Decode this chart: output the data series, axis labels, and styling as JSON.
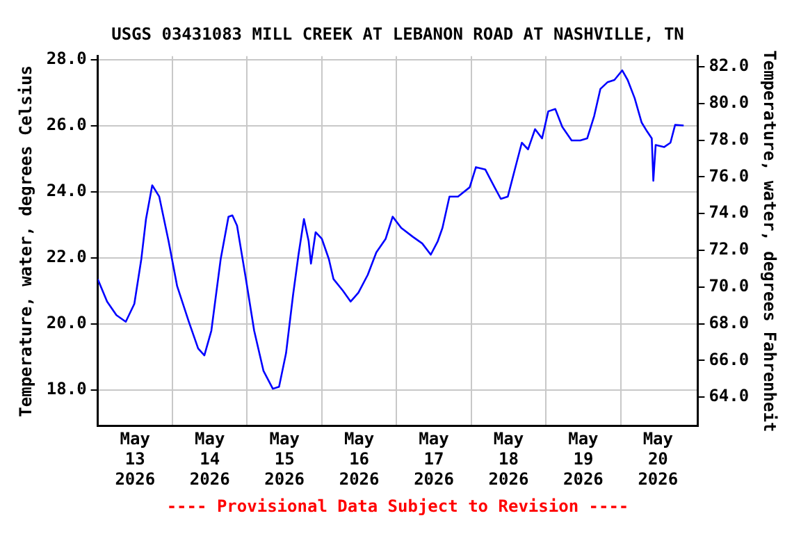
{
  "chart_data": {
    "type": "line",
    "title": "USGS 03431083 MILL CREEK AT LEBANON ROAD AT NASHVILLE, TN",
    "ylabel": "Temperature, water, degrees Celsius",
    "y2label": "Temperature, water, degrees Fahrenheit",
    "annotations": [
      "---- Provisional Data Subject to Revision ----"
    ],
    "x": [
      "2026-05-13T00:00",
      "2026-05-13T03:00",
      "2026-05-13T06:00",
      "2026-05-13T09:00",
      "2026-05-13T11:45",
      "2026-05-13T14:00",
      "2026-05-13T15:30",
      "2026-05-13T17:30",
      "2026-05-13T19:45",
      "2026-05-13T22:45",
      "2026-05-14T01:30",
      "2026-05-14T05:15",
      "2026-05-14T08:15",
      "2026-05-14T10:15",
      "2026-05-14T12:30",
      "2026-05-14T15:30",
      "2026-05-14T18:00",
      "2026-05-14T19:15",
      "2026-05-14T20:45",
      "2026-05-14T23:30",
      "2026-05-15T02:15",
      "2026-05-15T05:15",
      "2026-05-15T08:15",
      "2026-05-15T10:15",
      "2026-05-15T12:30",
      "2026-05-15T14:45",
      "2026-05-15T16:30",
      "2026-05-15T18:15",
      "2026-05-15T19:45",
      "2026-05-15T20:30",
      "2026-05-15T22:00",
      "2026-05-16T00:00",
      "2026-05-16T02:15",
      "2026-05-16T03:45",
      "2026-05-16T06:45",
      "2026-05-16T09:15",
      "2026-05-16T11:45",
      "2026-05-16T14:45",
      "2026-05-16T17:30",
      "2026-05-16T20:30",
      "2026-05-16T22:45",
      "2026-05-17T01:30",
      "2026-05-17T05:15",
      "2026-05-17T08:15",
      "2026-05-17T11:00",
      "2026-05-17T13:15",
      "2026-05-17T14:45",
      "2026-05-17T17:00",
      "2026-05-17T19:45",
      "2026-05-17T23:30",
      "2026-05-18T01:30",
      "2026-05-18T04:30",
      "2026-05-18T07:30",
      "2026-05-18T09:30",
      "2026-05-18T11:45",
      "2026-05-18T14:00",
      "2026-05-18T16:15",
      "2026-05-18T18:15",
      "2026-05-18T20:30",
      "2026-05-18T22:45",
      "2026-05-19T00:45",
      "2026-05-19T03:00",
      "2026-05-19T05:15",
      "2026-05-19T08:15",
      "2026-05-19T11:00",
      "2026-05-19T13:15",
      "2026-05-19T15:30",
      "2026-05-19T17:30",
      "2026-05-19T19:45",
      "2026-05-19T22:00",
      "2026-05-20T00:30",
      "2026-05-20T02:15",
      "2026-05-20T04:30",
      "2026-05-20T06:45",
      "2026-05-20T08:30",
      "2026-05-20T10:00",
      "2026-05-20T10:30",
      "2026-05-20T11:15",
      "2026-05-20T14:00",
      "2026-05-20T16:00",
      "2026-05-20T17:30",
      "2026-05-20T20:15"
    ],
    "series": [
      {
        "color": "#0000ff",
        "values": [
          21.35,
          20.67,
          20.26,
          20.06,
          20.6,
          21.96,
          23.17,
          24.19,
          23.85,
          22.5,
          21.14,
          20.06,
          19.25,
          19.04,
          19.79,
          21.96,
          23.24,
          23.28,
          22.97,
          21.41,
          19.79,
          18.57,
          18.03,
          18.09,
          19.11,
          20.87,
          22.09,
          23.17,
          22.5,
          21.82,
          22.77,
          22.57,
          21.96,
          21.35,
          21.0,
          20.67,
          20.94,
          21.48,
          22.16,
          22.57,
          23.24,
          22.9,
          22.63,
          22.43,
          22.09,
          22.5,
          22.9,
          23.85,
          23.85,
          24.13,
          24.74,
          24.67,
          24.13,
          23.78,
          23.85,
          24.67,
          25.48,
          25.28,
          25.89,
          25.61,
          26.43,
          26.5,
          25.96,
          25.55,
          25.55,
          25.61,
          26.29,
          27.11,
          27.31,
          27.38,
          27.67,
          27.38,
          26.83,
          26.09,
          25.82,
          25.61,
          24.33,
          25.41,
          25.35,
          25.48,
          26.02,
          26.0
        ]
      }
    ],
    "xlim": [
      "2026-05-13T00:00",
      "2026-05-21T00:45"
    ],
    "xticks": [
      {
        "value": "2026-05-13T12:00",
        "label": "May\n13\n2026"
      },
      {
        "value": "2026-05-14T00:00",
        "label": null
      },
      {
        "value": "2026-05-14T12:00",
        "label": "May\n14\n2026"
      },
      {
        "value": "2026-05-15T00:00",
        "label": null
      },
      {
        "value": "2026-05-15T12:00",
        "label": "May\n15\n2026"
      },
      {
        "value": "2026-05-16T00:00",
        "label": null
      },
      {
        "value": "2026-05-16T12:00",
        "label": "May\n16\n2026"
      },
      {
        "value": "2026-05-17T00:00",
        "label": null
      },
      {
        "value": "2026-05-17T12:00",
        "label": "May\n17\n2026"
      },
      {
        "value": "2026-05-18T00:00",
        "label": null
      },
      {
        "value": "2026-05-18T12:00",
        "label": "May\n18\n2026"
      },
      {
        "value": "2026-05-19T00:00",
        "label": null
      },
      {
        "value": "2026-05-19T12:00",
        "label": "May\n19\n2026"
      },
      {
        "value": "2026-05-20T00:00",
        "label": null
      },
      {
        "value": "2026-05-20T12:00",
        "label": "May\n20\n2026"
      }
    ],
    "ylim": [
      16.9,
      28.1
    ],
    "yticks": [
      {
        "value": 18,
        "label": "18.0"
      },
      {
        "value": 20,
        "label": "20.0"
      },
      {
        "value": 22,
        "label": "22.0"
      },
      {
        "value": 24,
        "label": "24.0"
      },
      {
        "value": 26,
        "label": "26.0"
      },
      {
        "value": 28,
        "label": "28.0"
      }
    ],
    "y2lim": [
      62.42,
      82.58
    ],
    "y2ticks": [
      {
        "value": 64,
        "label": "64.0"
      },
      {
        "value": 66,
        "label": "66.0"
      },
      {
        "value": 68,
        "label": "68.0"
      },
      {
        "value": 70,
        "label": "70.0"
      },
      {
        "value": 72,
        "label": "72.0"
      },
      {
        "value": 74,
        "label": "74.0"
      },
      {
        "value": 76,
        "label": "76.0"
      },
      {
        "value": 78,
        "label": "78.0"
      },
      {
        "value": 80,
        "label": "80.0"
      },
      {
        "value": 82,
        "label": "82.0"
      }
    ],
    "grid": true,
    "legend": false,
    "marker": "none",
    "line_style": "solid"
  }
}
